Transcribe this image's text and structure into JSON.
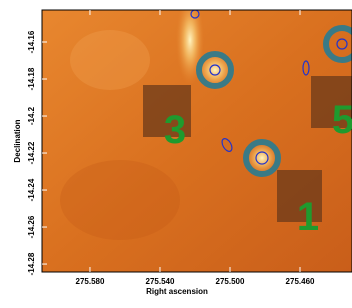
{
  "chart_data": {
    "type": "image",
    "xlabel": "Right ascension",
    "ylabel": "Declination",
    "xlim": [
      275.6074,
      275.4303
    ],
    "ylim": [
      -14.2843,
      -14.1427
    ],
    "xticks": [
      {
        "value": 275.58,
        "label": "275.580"
      },
      {
        "value": 275.54,
        "label": "275.540"
      },
      {
        "value": 275.5,
        "label": "275.500"
      },
      {
        "value": 275.46,
        "label": "275.460"
      }
    ],
    "yticks": [
      -14.16,
      -14.18,
      -14.2,
      -14.22,
      -14.24,
      -14.26,
      -14.28
    ],
    "annotations": [
      "3",
      "1",
      "5"
    ]
  }
}
